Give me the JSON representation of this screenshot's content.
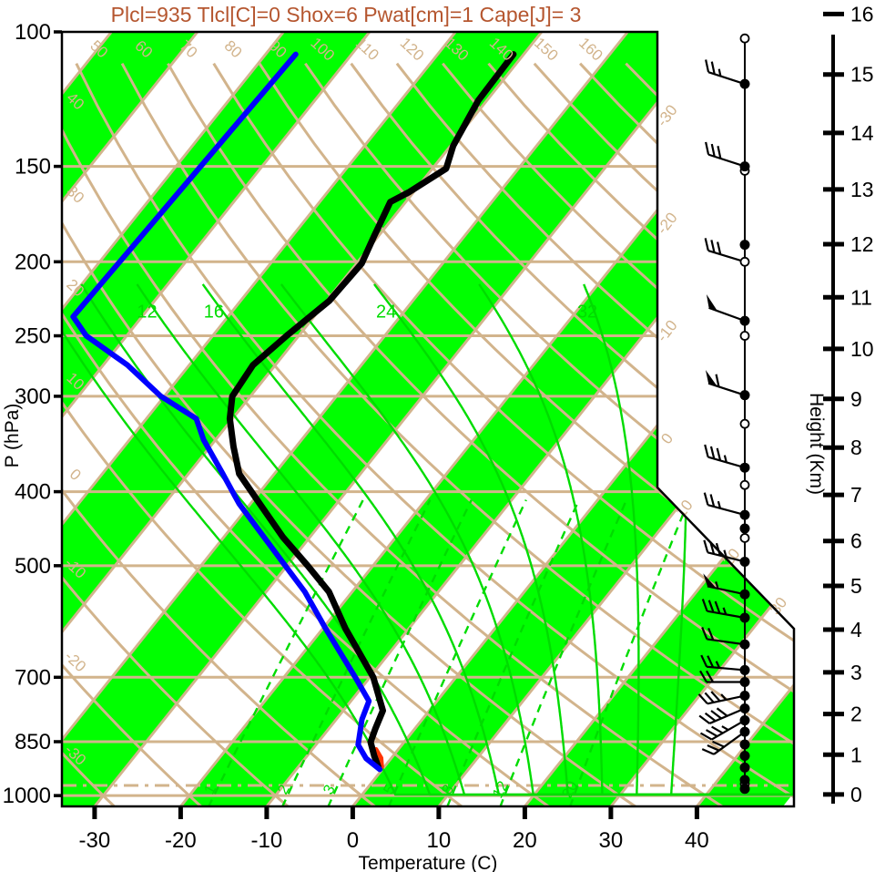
{
  "title": {
    "text": "Plcl=935 Tlcl[C]=0 Shox=6 Pwat[cm]=1 Cape[J]= 3"
  },
  "colors": {
    "title": "#b5562f",
    "tan": "#d2b48c",
    "green_line": "#00dc00",
    "green_fill": "#00ff00",
    "temperature": "#000000",
    "dewpoint": "#0000ff",
    "parcel": "#ff3300",
    "axis": "#000000"
  },
  "axes": {
    "pressure": {
      "label": "P (hPa)",
      "ticks": [
        100,
        150,
        200,
        250,
        300,
        400,
        500,
        700,
        850,
        1000
      ]
    },
    "temperature": {
      "label": "Temperature (C)",
      "ticks": [
        -30,
        -20,
        -10,
        0,
        10,
        20,
        30,
        40
      ]
    },
    "height": {
      "label": "Height (Km)",
      "ticks": [
        0,
        1,
        2,
        3,
        4,
        5,
        6,
        7,
        8,
        9,
        10,
        11,
        12,
        13,
        14,
        15,
        16
      ]
    }
  },
  "chart_data": {
    "type": "skewt-log-p",
    "pressure_range_hpa": [
      100,
      1035
    ],
    "isobars_hpa": [
      150,
      200,
      250,
      300,
      400,
      500,
      700,
      850,
      1000
    ],
    "surface_pressure_line_hpa": 970,
    "isotherms_c": {
      "from": -140,
      "to": 40,
      "step": 10
    },
    "isotherm_edge_labels_c": [
      -30,
      -20,
      -10,
      0,
      10,
      20,
      30
    ],
    "dry_adiabats_c": {
      "from": -30,
      "to": 170,
      "step": 10,
      "top_labels": [
        50,
        60,
        70,
        80,
        90,
        100,
        110,
        120,
        130,
        140,
        150,
        160
      ],
      "left_labels": [
        40,
        30,
        20,
        10,
        0,
        -10,
        -20,
        -30
      ]
    },
    "moist_adiabats_c": {
      "values": [
        4,
        8,
        12,
        16,
        20,
        24,
        28,
        32,
        36
      ],
      "labels": [
        12,
        16,
        24,
        32
      ],
      "top_hpa": 215
    },
    "mixing_ratio_gkg": {
      "values": [
        1,
        2,
        3,
        5,
        8,
        12,
        20
      ],
      "labels": [
        1,
        2,
        3,
        5,
        8,
        12,
        20
      ],
      "top_hpa": 400
    },
    "temperature_curve_p_t": [
      [
        107,
        -51.2
      ],
      [
        123,
        -51.0
      ],
      [
        141,
        -49.7
      ],
      [
        151,
        -48.4
      ],
      [
        162,
        -50.5
      ],
      [
        167,
        -51.8
      ],
      [
        185,
        -50.5
      ],
      [
        201,
        -49.4
      ],
      [
        225,
        -49.7
      ],
      [
        250,
        -51.4
      ],
      [
        273,
        -52.6
      ],
      [
        300,
        -52.1
      ],
      [
        321,
        -50.3
      ],
      [
        349,
        -47.3
      ],
      [
        379,
        -44.1
      ],
      [
        415,
        -38.9
      ],
      [
        459,
        -33.1
      ],
      [
        500,
        -27.6
      ],
      [
        541,
        -22.7
      ],
      [
        604,
        -17.4
      ],
      [
        700,
        -9.6
      ],
      [
        774,
        -5.4
      ],
      [
        817,
        -4.6
      ],
      [
        851,
        -3.9
      ],
      [
        887,
        -2.2
      ],
      [
        917,
        -0.7
      ]
    ],
    "dewpoint_curve_p_t": [
      [
        107,
        -76.5
      ],
      [
        236,
        -78.0
      ],
      [
        250,
        -74.7
      ],
      [
        273,
        -67.2
      ],
      [
        300,
        -60.4
      ],
      [
        321,
        -54.2
      ],
      [
        342,
        -51.4
      ],
      [
        379,
        -46.0
      ],
      [
        415,
        -41.3
      ],
      [
        459,
        -35.3
      ],
      [
        500,
        -30.2
      ],
      [
        541,
        -25.5
      ],
      [
        604,
        -19.7
      ],
      [
        700,
        -11.7
      ],
      [
        752,
        -7.9
      ],
      [
        795,
        -7.0
      ],
      [
        858,
        -5.1
      ],
      [
        894,
        -2.9
      ],
      [
        924,
        -0.3
      ]
    ],
    "parcel_curve_p_t": [
      [
        917,
        -0.3
      ],
      [
        893,
        -1.2
      ],
      [
        870,
        -2.6
      ]
    ],
    "wind": {
      "staff_top_hpa": 102,
      "dots_hpa": [
        117,
        150,
        190,
        239,
        299,
        372,
        429,
        447,
        494,
        545,
        585,
        634,
        685,
        710,
        740,
        769,
        797,
        825,
        857,
        887,
        919,
        954,
        980
      ],
      "rings_hpa": [
        102,
        152,
        200,
        250,
        326,
        392,
        460,
        965
      ],
      "barbs": [
        {
          "p": 117,
          "kt": 25,
          "ang": 162
        },
        {
          "p": 150,
          "kt": 30,
          "ang": 162
        },
        {
          "p": 200,
          "kt": 30,
          "ang": 163
        },
        {
          "p": 239,
          "kt": 50,
          "ang": 160
        },
        {
          "p": 299,
          "kt": 60,
          "ang": 162
        },
        {
          "p": 372,
          "kt": 35,
          "ang": 164
        },
        {
          "p": 429,
          "kt": 25,
          "ang": 165
        },
        {
          "p": 494,
          "kt": 35,
          "ang": 166
        },
        {
          "p": 545,
          "kt": 55,
          "ang": 168
        },
        {
          "p": 585,
          "kt": 35,
          "ang": 170
        },
        {
          "p": 634,
          "kt": 20,
          "ang": 172
        },
        {
          "p": 685,
          "kt": 25,
          "ang": 175
        },
        {
          "p": 710,
          "kt": 20,
          "ang": 180
        },
        {
          "p": 740,
          "kt": 35,
          "ang": 192
        },
        {
          "p": 769,
          "kt": 40,
          "ang": 203
        },
        {
          "p": 797,
          "kt": 35,
          "ang": 210
        },
        {
          "p": 825,
          "kt": 30,
          "ang": 216
        }
      ]
    }
  }
}
